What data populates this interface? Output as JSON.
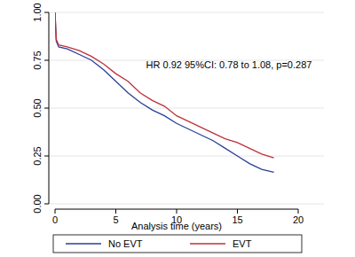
{
  "chart_data": {
    "type": "line",
    "x_label": "Analysis time (years)",
    "annotation": "HR 0.92 95%CI: 0.78 to 1.08, p=0.287",
    "x": [
      0,
      0.1,
      0.3,
      1,
      2,
      3,
      4,
      5,
      6,
      7,
      8,
      9,
      10,
      11,
      12,
      13,
      14,
      15,
      16,
      17,
      18
    ],
    "series": [
      {
        "name": "No EVT",
        "color": "#2b3f96",
        "values": [
          1,
          0.85,
          0.82,
          0.81,
          0.78,
          0.75,
          0.7,
          0.64,
          0.58,
          0.53,
          0.49,
          0.46,
          0.42,
          0.39,
          0.36,
          0.33,
          0.29,
          0.25,
          0.21,
          0.18,
          0.165
        ]
      },
      {
        "name": "EVT",
        "color": "#c0303a",
        "values": [
          1,
          0.86,
          0.83,
          0.82,
          0.8,
          0.77,
          0.73,
          0.68,
          0.64,
          0.58,
          0.54,
          0.51,
          0.46,
          0.43,
          0.4,
          0.37,
          0.34,
          0.32,
          0.29,
          0.26,
          0.24
        ]
      }
    ],
    "xlim": [
      0,
      20
    ],
    "xticks": [
      0,
      5,
      10,
      15,
      20
    ],
    "ylim": [
      0,
      1
    ],
    "yticks": [
      {
        "value": 0,
        "label": "0.00"
      },
      {
        "value": 0.25,
        "label": "0.25"
      },
      {
        "value": 0.5,
        "label": "0.50"
      },
      {
        "value": 0.75,
        "label": "0.75"
      },
      {
        "value": 1,
        "label": "1.00"
      }
    ],
    "grid": true,
    "legend": "bottom"
  }
}
